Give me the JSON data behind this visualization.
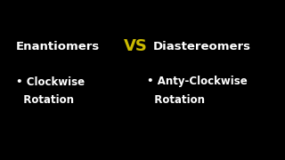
{
  "background_color": "#000000",
  "title_left": "Enantiomers",
  "title_vs": "VS",
  "title_right": "Diastereomers",
  "title_color": "#ffffff",
  "vs_color": "#ccbb00",
  "bullet_left_line1": "• Clockwise",
  "bullet_left_line2": "  Rotation",
  "bullet_right_line1": "• Anty-Clockwise",
  "bullet_right_line2": "  Rotation",
  "bullet_color": "#ffffff",
  "title_fontsize": 9.5,
  "vs_fontsize": 13,
  "bullet_fontsize": 8.5
}
